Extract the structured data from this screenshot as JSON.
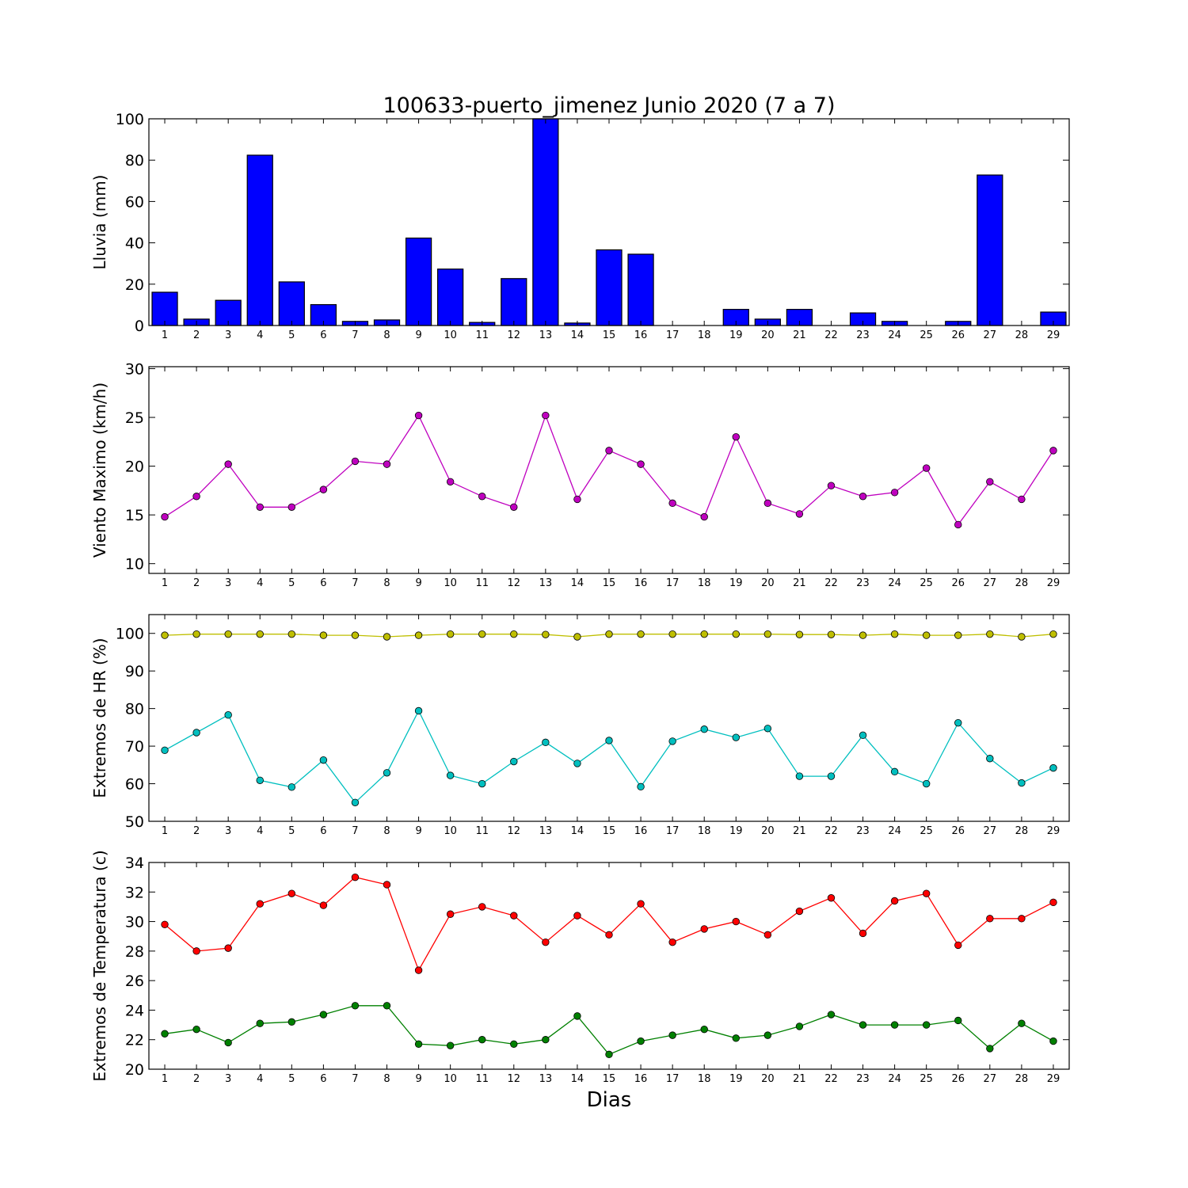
{
  "figure": {
    "title": "100633-puerto_jimenez Junio 2020  (7 a 7)",
    "xlabel": "Dias"
  },
  "chart_data": [
    {
      "type": "bar",
      "id": "lluvia",
      "ylabel": "Lluvia (mm)",
      "ylim": [
        0,
        100
      ],
      "yticks": [
        0,
        20,
        40,
        60,
        80,
        100
      ],
      "x": [
        1,
        2,
        3,
        4,
        5,
        6,
        7,
        8,
        9,
        10,
        11,
        12,
        13,
        14,
        15,
        16,
        17,
        18,
        19,
        20,
        21,
        22,
        23,
        24,
        25,
        26,
        27,
        28,
        29
      ],
      "series": [
        {
          "values": [
            16.1,
            3.1,
            12.2,
            82.4,
            21.1,
            10.1,
            2.0,
            2.7,
            42.3,
            27.3,
            1.5,
            22.7,
            100.0,
            1.2,
            36.6,
            34.5,
            0,
            0,
            7.8,
            3.1,
            7.8,
            0,
            6.1,
            2.0,
            0,
            2.0,
            72.8,
            0,
            6.5
          ],
          "color": "#0000ff"
        }
      ],
      "grid": false
    },
    {
      "type": "line",
      "id": "viento",
      "ylabel": "Viento Maximo (km/h)",
      "ylim": [
        9,
        30.2
      ],
      "yticks": [
        10,
        15,
        20,
        25,
        30
      ],
      "x": [
        1,
        2,
        3,
        4,
        5,
        6,
        7,
        8,
        9,
        10,
        11,
        12,
        13,
        14,
        15,
        16,
        17,
        18,
        19,
        20,
        21,
        22,
        23,
        24,
        25,
        26,
        27,
        28,
        29
      ],
      "series": [
        {
          "values": [
            14.8,
            16.9,
            20.2,
            15.8,
            15.8,
            17.6,
            20.5,
            20.2,
            25.2,
            18.4,
            16.9,
            15.8,
            25.2,
            16.6,
            21.6,
            20.2,
            16.2,
            14.8,
            23.0,
            16.2,
            15.1,
            18.0,
            16.9,
            17.3,
            19.8,
            14.0,
            18.4,
            16.6,
            21.6
          ],
          "color": "#bf00bf"
        }
      ],
      "grid": false
    },
    {
      "type": "line",
      "id": "humedad",
      "ylabel": "Extremos de HR (%)",
      "ylim": [
        50,
        105
      ],
      "yticks": [
        50,
        60,
        70,
        80,
        90,
        100
      ],
      "x": [
        1,
        2,
        3,
        4,
        5,
        6,
        7,
        8,
        9,
        10,
        11,
        12,
        13,
        14,
        15,
        16,
        17,
        18,
        19,
        20,
        21,
        22,
        23,
        24,
        25,
        26,
        27,
        28,
        29
      ],
      "series": [
        {
          "values": [
            99.5,
            99.8,
            99.8,
            99.8,
            99.8,
            99.5,
            99.5,
            99.1,
            99.5,
            99.8,
            99.8,
            99.8,
            99.7,
            99.1,
            99.8,
            99.8,
            99.8,
            99.8,
            99.8,
            99.8,
            99.7,
            99.7,
            99.5,
            99.8,
            99.5,
            99.5,
            99.8,
            99.1,
            99.8
          ],
          "color": "#bfbf00"
        },
        {
          "values": [
            68.9,
            73.6,
            78.3,
            60.9,
            59.1,
            66.3,
            55.0,
            62.9,
            79.4,
            62.2,
            60.0,
            65.9,
            71.0,
            65.4,
            71.5,
            59.2,
            71.3,
            74.5,
            72.3,
            74.7,
            62.0,
            62.0,
            72.9,
            63.2,
            60.0,
            76.2,
            66.7,
            60.2,
            64.2
          ],
          "color": "#00bfbf"
        }
      ],
      "grid": false
    },
    {
      "type": "line",
      "id": "temperatura",
      "ylabel": "Extremos de Temperatura (c)",
      "ylim": [
        20,
        34
      ],
      "yticks": [
        20,
        22,
        24,
        26,
        28,
        30,
        32,
        34
      ],
      "x": [
        1,
        2,
        3,
        4,
        5,
        6,
        7,
        8,
        9,
        10,
        11,
        12,
        13,
        14,
        15,
        16,
        17,
        18,
        19,
        20,
        21,
        22,
        23,
        24,
        25,
        26,
        27,
        28,
        29
      ],
      "series": [
        {
          "values": [
            29.8,
            28.0,
            28.2,
            31.2,
            31.9,
            31.1,
            33.0,
            32.5,
            26.7,
            30.5,
            31.0,
            30.4,
            28.6,
            30.4,
            29.1,
            31.2,
            28.6,
            29.5,
            30.0,
            29.1,
            30.7,
            31.6,
            29.2,
            31.4,
            31.9,
            28.4,
            30.2,
            30.2,
            31.3
          ],
          "color": "#ff0000"
        },
        {
          "values": [
            22.4,
            22.7,
            21.8,
            23.1,
            23.2,
            23.7,
            24.3,
            24.3,
            21.7,
            21.6,
            22.0,
            21.7,
            22.0,
            23.6,
            21.0,
            21.9,
            22.3,
            22.7,
            22.1,
            22.3,
            22.9,
            23.7,
            23.0,
            23.0,
            23.0,
            23.3,
            21.4,
            23.1,
            21.9
          ],
          "color": "#008000"
        }
      ],
      "grid": false
    }
  ]
}
